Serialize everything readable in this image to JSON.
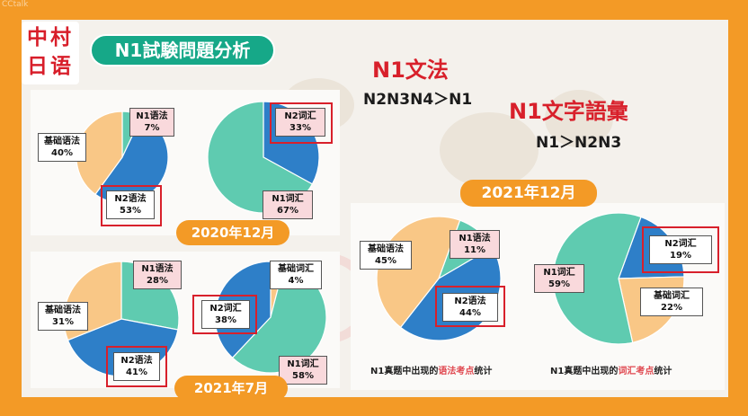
{
  "watermark": "CCtalk",
  "logo": {
    "chars": [
      "中",
      "村",
      "日",
      "语"
    ]
  },
  "title": "N1試験問題分析",
  "headline": {
    "grammar_title": "N1文法",
    "grammar_order": "N2N3N4＞N1",
    "vocab_title": "N1文字語彙",
    "vocab_order": "N1＞N2N3"
  },
  "dates": {
    "d2020": "2020年12月",
    "d2021_7": "2021年7月",
    "d2021_12": "2021年12月"
  },
  "colors": {
    "blue": "#2e7fc8",
    "teal": "#5fcbb0",
    "peach": "#f9c786",
    "red": "#d8202b",
    "orange": "#f39a26"
  },
  "charts": {
    "c2020_grammar": {
      "slices": [
        {
          "label": "N1语法",
          "value": "7%"
        },
        {
          "label": "N2语法",
          "value": "53%"
        },
        {
          "label": "基础语法",
          "value": "40%"
        }
      ]
    },
    "c2020_vocab": {
      "slices": [
        {
          "label": "N2词汇",
          "value": "33%"
        },
        {
          "label": "N1词汇",
          "value": "67%"
        }
      ]
    },
    "c2021_7_grammar": {
      "slices": [
        {
          "label": "N1语法",
          "value": "28%"
        },
        {
          "label": "N2语法",
          "value": "41%"
        },
        {
          "label": "基础语法",
          "value": "31%"
        }
      ]
    },
    "c2021_7_vocab": {
      "slices": [
        {
          "label": "基础词汇",
          "value": "4%"
        },
        {
          "label": "N1词汇",
          "value": "58%"
        },
        {
          "label": "N2词汇",
          "value": "38%"
        }
      ]
    },
    "c2021_12_grammar": {
      "slices": [
        {
          "label": "N1语法",
          "value": "11%"
        },
        {
          "label": "N2语法",
          "value": "44%"
        },
        {
          "label": "基础语法",
          "value": "45%"
        }
      ]
    },
    "c2021_12_vocab": {
      "slices": [
        {
          "label": "N2词汇",
          "value": "19%"
        },
        {
          "label": "基础词汇",
          "value": "22%"
        },
        {
          "label": "N1词汇",
          "value": "59%"
        }
      ]
    }
  },
  "captions": {
    "grammar_pre": "N1真题中出现的",
    "grammar_hl": "语法考点",
    "grammar_post": "统计",
    "vocab_pre": "N1真题中出现的",
    "vocab_hl": "词汇考点",
    "vocab_post": "统计"
  }
}
